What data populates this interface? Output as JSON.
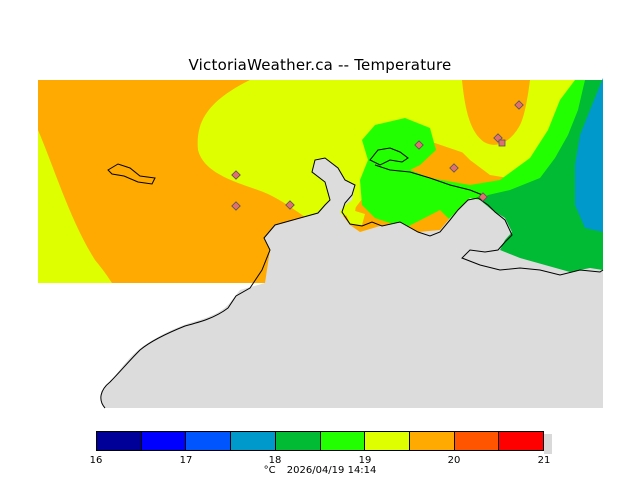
{
  "title": "VictoriaWeather.ca -- Temperature",
  "colors": {
    "land_grey": "#dcdcdc",
    "coast": "#000000",
    "t19_20": "#ffaa00",
    "t18_5_19": "#ddff00",
    "t18_18_5": "#22ff00",
    "t17_5_18": "#00bb33",
    "t17_17_5": "#0099cc",
    "station_fill": "#e07070"
  },
  "legend": {
    "swatches": [
      "#000099",
      "#0000ff",
      "#0055ff",
      "#0099cc",
      "#00bb33",
      "#22ff00",
      "#ddff00",
      "#ffaa00",
      "#ff5500",
      "#ff0000"
    ],
    "ticks": [
      "16",
      "17",
      "18",
      "19",
      "20",
      "21"
    ],
    "unit": "°C",
    "timestamp": "2026/04/19 14:14"
  }
}
